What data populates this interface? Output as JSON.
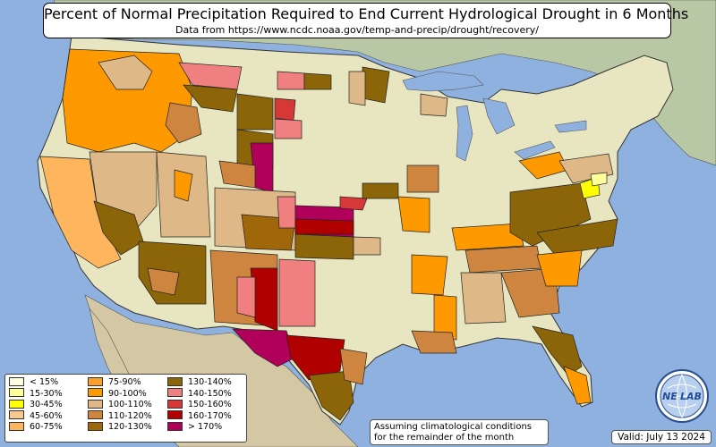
{
  "header": {
    "title": "Percent of Normal Precipitation Required to End Current Hydrological Drought in 6 Months",
    "subtitle": "Data from https://www.ncdc.noaa.gov/temp-and-precip/drought/recovery/"
  },
  "legend": {
    "items": [
      {
        "label": "< 15%",
        "color": "#ffffe0"
      },
      {
        "label": "15-30%",
        "color": "#ffff99"
      },
      {
        "label": "30-45%",
        "color": "#ffff00"
      },
      {
        "label": "45-60%",
        "color": "#f8c890"
      },
      {
        "label": "60-75%",
        "color": "#fdb55e"
      },
      {
        "label": "75-90%",
        "color": "#fe9f2c"
      },
      {
        "label": "90-100%",
        "color": "#ff9900"
      },
      {
        "label": "100-110%",
        "color": "#deb887"
      },
      {
        "label": "110-120%",
        "color": "#cd853f"
      },
      {
        "label": "120-130%",
        "color": "#a0660a"
      },
      {
        "label": "130-140%",
        "color": "#8b6508"
      },
      {
        "label": "140-150%",
        "color": "#f08080"
      },
      {
        "label": "150-160%",
        "color": "#d63838"
      },
      {
        "label": "160-170%",
        "color": "#b00000"
      },
      {
        "label": "> 170%",
        "color": "#b0005a"
      }
    ]
  },
  "note": {
    "line1": "Assuming climatological conditions",
    "line2": "for the remainder of the month"
  },
  "valid_label": "Valid: July 13 2024",
  "logo": {
    "text_left": "NE",
    "text_right": "LAB",
    "icon": "globe-logo-icon"
  },
  "colors": {
    "ocean": "#8fb1e0",
    "land_no_drought": "#e8e6c0",
    "canada": "#b8c8a4",
    "mexico": "#d4c8a4"
  }
}
